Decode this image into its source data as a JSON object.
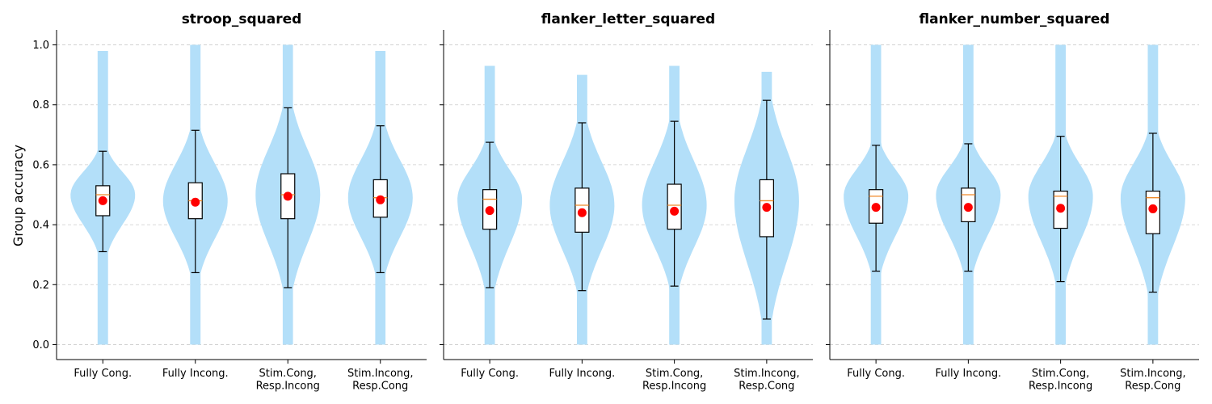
{
  "chart_data": {
    "type": "violin",
    "ylabel": "Group accuracy",
    "ylim": [
      -0.05,
      1.05
    ],
    "yticks": [
      0.0,
      0.2,
      0.4,
      0.6,
      0.8,
      1.0
    ],
    "ytick_labels": [
      "0.0",
      "0.2",
      "0.4",
      "0.6",
      "0.8",
      "1.0"
    ],
    "grid": "y, dashed",
    "colors": {
      "violin": "#b3dff9",
      "box_edge": "#000000",
      "median": "#f08a2a",
      "mean": "#ff0000",
      "grid": "#cccccc"
    },
    "categories": [
      [
        "Fully Cong."
      ],
      [
        "Fully Incong."
      ],
      [
        "Stim.Cong,",
        "Resp.Incong"
      ],
      [
        "Stim.Incong,",
        "Resp.Cong"
      ]
    ],
    "panels": [
      {
        "title": "stroop_squared",
        "groups": [
          {
            "vmin": 0.0,
            "vmax": 0.98,
            "whisker_low": 0.31,
            "q1": 0.43,
            "median": 0.5,
            "q3": 0.53,
            "whisker_high": 0.645,
            "mean": 0.48
          },
          {
            "vmin": 0.0,
            "vmax": 1.0,
            "whisker_low": 0.24,
            "q1": 0.42,
            "median": 0.48,
            "q3": 0.54,
            "whisker_high": 0.715,
            "mean": 0.475
          },
          {
            "vmin": 0.0,
            "vmax": 1.0,
            "whisker_low": 0.19,
            "q1": 0.42,
            "median": 0.5,
            "q3": 0.57,
            "whisker_high": 0.79,
            "mean": 0.495
          },
          {
            "vmin": 0.0,
            "vmax": 0.98,
            "whisker_low": 0.24,
            "q1": 0.425,
            "median": 0.49,
            "q3": 0.55,
            "whisker_high": 0.73,
            "mean": 0.483
          }
        ]
      },
      {
        "title": "flanker_letter_squared",
        "groups": [
          {
            "vmin": 0.0,
            "vmax": 0.93,
            "whisker_low": 0.19,
            "q1": 0.385,
            "median": 0.485,
            "q3": 0.517,
            "whisker_high": 0.675,
            "mean": 0.447
          },
          {
            "vmin": 0.0,
            "vmax": 0.9,
            "whisker_low": 0.18,
            "q1": 0.375,
            "median": 0.465,
            "q3": 0.522,
            "whisker_high": 0.74,
            "mean": 0.44
          },
          {
            "vmin": 0.0,
            "vmax": 0.93,
            "whisker_low": 0.195,
            "q1": 0.385,
            "median": 0.465,
            "q3": 0.535,
            "whisker_high": 0.745,
            "mean": 0.445
          },
          {
            "vmin": 0.0,
            "vmax": 0.91,
            "whisker_low": 0.085,
            "q1": 0.36,
            "median": 0.48,
            "q3": 0.55,
            "whisker_high": 0.815,
            "mean": 0.458
          }
        ]
      },
      {
        "title": "flanker_number_squared",
        "groups": [
          {
            "vmin": 0.0,
            "vmax": 1.0,
            "whisker_low": 0.245,
            "q1": 0.405,
            "median": 0.495,
            "q3": 0.517,
            "whisker_high": 0.665,
            "mean": 0.458
          },
          {
            "vmin": 0.0,
            "vmax": 1.0,
            "whisker_low": 0.245,
            "q1": 0.41,
            "median": 0.5,
            "q3": 0.522,
            "whisker_high": 0.67,
            "mean": 0.458
          },
          {
            "vmin": 0.0,
            "vmax": 1.0,
            "whisker_low": 0.21,
            "q1": 0.388,
            "median": 0.495,
            "q3": 0.512,
            "whisker_high": 0.695,
            "mean": 0.455
          },
          {
            "vmin": 0.0,
            "vmax": 1.0,
            "whisker_low": 0.175,
            "q1": 0.37,
            "median": 0.49,
            "q3": 0.512,
            "whisker_high": 0.705,
            "mean": 0.453
          }
        ]
      }
    ]
  }
}
